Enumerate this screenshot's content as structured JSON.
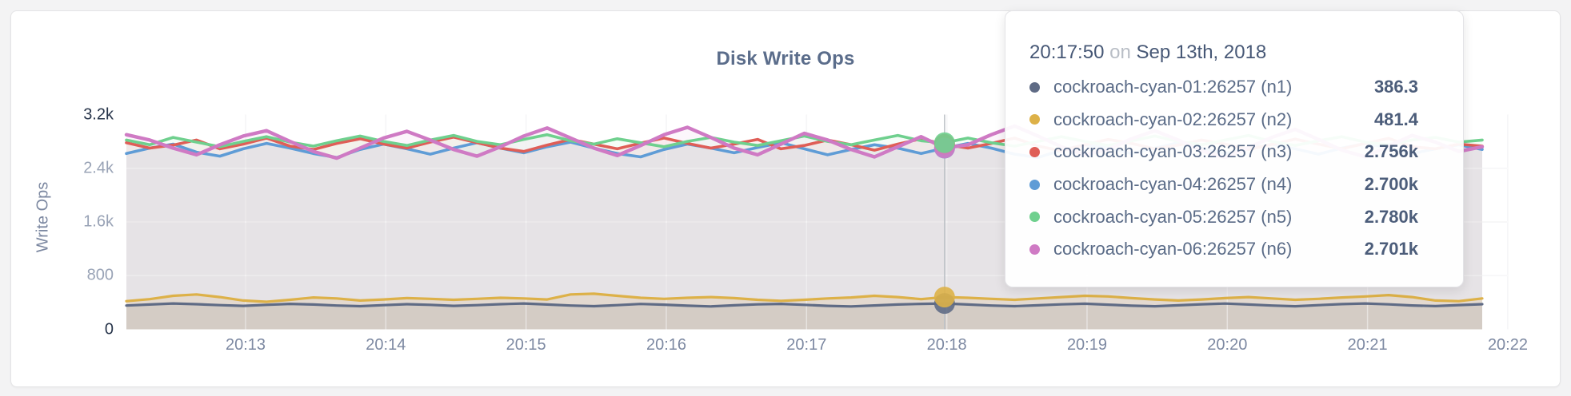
{
  "panel": {
    "title": "Disk Write Ops"
  },
  "chart_data": {
    "type": "area",
    "title": "Disk Write Ops",
    "xlabel": "",
    "ylabel": "Write Ops",
    "ylim": [
      0,
      3200
    ],
    "grid": true,
    "sample_interval_seconds": 10,
    "hover_index": 35,
    "colors": {
      "crosshair": "#bcc0c6",
      "gridline": "#ececee",
      "title_text": "#5b6d8b",
      "tick_text": "#7d89a2"
    },
    "y_ticks": [
      {
        "label": "3.2k",
        "value": 3200,
        "emphasis": true
      },
      {
        "label": "2.4k",
        "value": 2400,
        "emphasis": false
      },
      {
        "label": "1.6k",
        "value": 1600,
        "emphasis": false
      },
      {
        "label": "800",
        "value": 800,
        "emphasis": false
      },
      {
        "label": "0",
        "value": 0,
        "emphasis": true
      }
    ],
    "x_ticks": [
      "20:13",
      "20:14",
      "20:15",
      "20:16",
      "20:17",
      "20:18",
      "20:19",
      "20:20",
      "20:21",
      "20:22"
    ],
    "series": [
      {
        "name": "cockroach-cyan-01:26257 (n1)",
        "color": "#5f6b85",
        "values": [
          355,
          370,
          385,
          375,
          360,
          350,
          365,
          380,
          370,
          355,
          345,
          360,
          375,
          365,
          350,
          360,
          375,
          385,
          370,
          355,
          345,
          360,
          378,
          368,
          352,
          342,
          358,
          372,
          380,
          365,
          350,
          342,
          356,
          370,
          380,
          386,
          370,
          355,
          345,
          358,
          372,
          382,
          368,
          352,
          344,
          358,
          374,
          384,
          370,
          354,
          344,
          360,
          376,
          386,
          372,
          356,
          346,
          362,
          375
        ]
      },
      {
        "name": "cockroach-cyan-02:26257 (n2)",
        "color": "#ddb148",
        "values": [
          420,
          450,
          500,
          520,
          480,
          430,
          410,
          440,
          475,
          460,
          430,
          445,
          465,
          455,
          440,
          455,
          470,
          460,
          445,
          520,
          530,
          500,
          470,
          455,
          470,
          480,
          465,
          440,
          425,
          440,
          460,
          475,
          500,
          480,
          450,
          481,
          470,
          455,
          440,
          460,
          480,
          500,
          490,
          465,
          445,
          430,
          445,
          465,
          480,
          460,
          440,
          455,
          475,
          490,
          510,
          480,
          430,
          420,
          460
        ]
      },
      {
        "name": "cockroach-cyan-03:26257 (n3)",
        "color": "#df5e57",
        "values": [
          2780,
          2700,
          2745,
          2820,
          2690,
          2760,
          2850,
          2730,
          2680,
          2770,
          2840,
          2760,
          2700,
          2790,
          2865,
          2780,
          2700,
          2650,
          2745,
          2830,
          2760,
          2690,
          2775,
          2850,
          2770,
          2700,
          2760,
          2830,
          2690,
          2740,
          2820,
          2750,
          2670,
          2760,
          2840,
          2756,
          2700,
          2770,
          2850,
          2730,
          2660,
          2750,
          2830,
          2770,
          2690,
          2745,
          2820,
          2760,
          2680,
          2755,
          2835,
          2760,
          2690,
          2770,
          2845,
          2720,
          2690,
          2760,
          2730
        ]
      },
      {
        "name": "cockroach-cyan-04:26257 (n4)",
        "color": "#5f9cd6",
        "values": [
          2620,
          2700,
          2760,
          2640,
          2580,
          2690,
          2770,
          2700,
          2620,
          2560,
          2680,
          2760,
          2690,
          2610,
          2700,
          2780,
          2700,
          2630,
          2720,
          2790,
          2700,
          2620,
          2570,
          2680,
          2760,
          2700,
          2630,
          2710,
          2780,
          2690,
          2600,
          2680,
          2750,
          2700,
          2620,
          2700,
          2770,
          2700,
          2610,
          2560,
          2670,
          2750,
          2700,
          2620,
          2700,
          2780,
          2700,
          2620,
          2690,
          2760,
          2690,
          2610,
          2700,
          2770,
          2700,
          2620,
          2690,
          2750,
          2680
        ]
      },
      {
        "name": "cockroach-cyan-05:26257 (n5)",
        "color": "#6fd08e",
        "values": [
          2820,
          2750,
          2860,
          2790,
          2720,
          2800,
          2870,
          2790,
          2730,
          2810,
          2880,
          2800,
          2740,
          2820,
          2890,
          2800,
          2750,
          2830,
          2900,
          2810,
          2760,
          2840,
          2780,
          2720,
          2800,
          2860,
          2790,
          2740,
          2810,
          2880,
          2800,
          2750,
          2820,
          2890,
          2810,
          2780,
          2850,
          2780,
          2730,
          2800,
          2870,
          2800,
          2740,
          2810,
          2880,
          2800,
          2750,
          2820,
          2890,
          2800,
          2740,
          2810,
          2870,
          2790,
          2750,
          2820,
          2860,
          2790,
          2820
        ]
      },
      {
        "name": "cockroach-cyan-06:26257 (n6)",
        "color": "#cf7ac4",
        "values": [
          2900,
          2820,
          2700,
          2600,
          2750,
          2880,
          2960,
          2800,
          2650,
          2550,
          2700,
          2850,
          2950,
          2820,
          2680,
          2580,
          2720,
          2880,
          3000,
          2850,
          2700,
          2590,
          2740,
          2900,
          3010,
          2860,
          2700,
          2600,
          2760,
          2920,
          2820,
          2680,
          2570,
          2720,
          2870,
          2701,
          2750,
          2900,
          3030,
          2880,
          2720,
          2600,
          2680,
          2840,
          2960,
          2820,
          2660,
          2560,
          2710,
          2860,
          2980,
          2830,
          2670,
          2570,
          2730,
          2890,
          2790,
          2650,
          2720
        ]
      }
    ]
  },
  "tooltip": {
    "time": "20:17:50",
    "connector": "on",
    "date": "Sep 13th, 2018",
    "rows": [
      {
        "label": "cockroach-cyan-01:26257 (n1)",
        "value": "386.3"
      },
      {
        "label": "cockroach-cyan-02:26257 (n2)",
        "value": "481.4"
      },
      {
        "label": "cockroach-cyan-03:26257 (n3)",
        "value": "2.756k"
      },
      {
        "label": "cockroach-cyan-04:26257 (n4)",
        "value": "2.700k"
      },
      {
        "label": "cockroach-cyan-05:26257 (n5)",
        "value": "2.780k"
      },
      {
        "label": "cockroach-cyan-06:26257 (n6)",
        "value": "2.701k"
      }
    ]
  }
}
